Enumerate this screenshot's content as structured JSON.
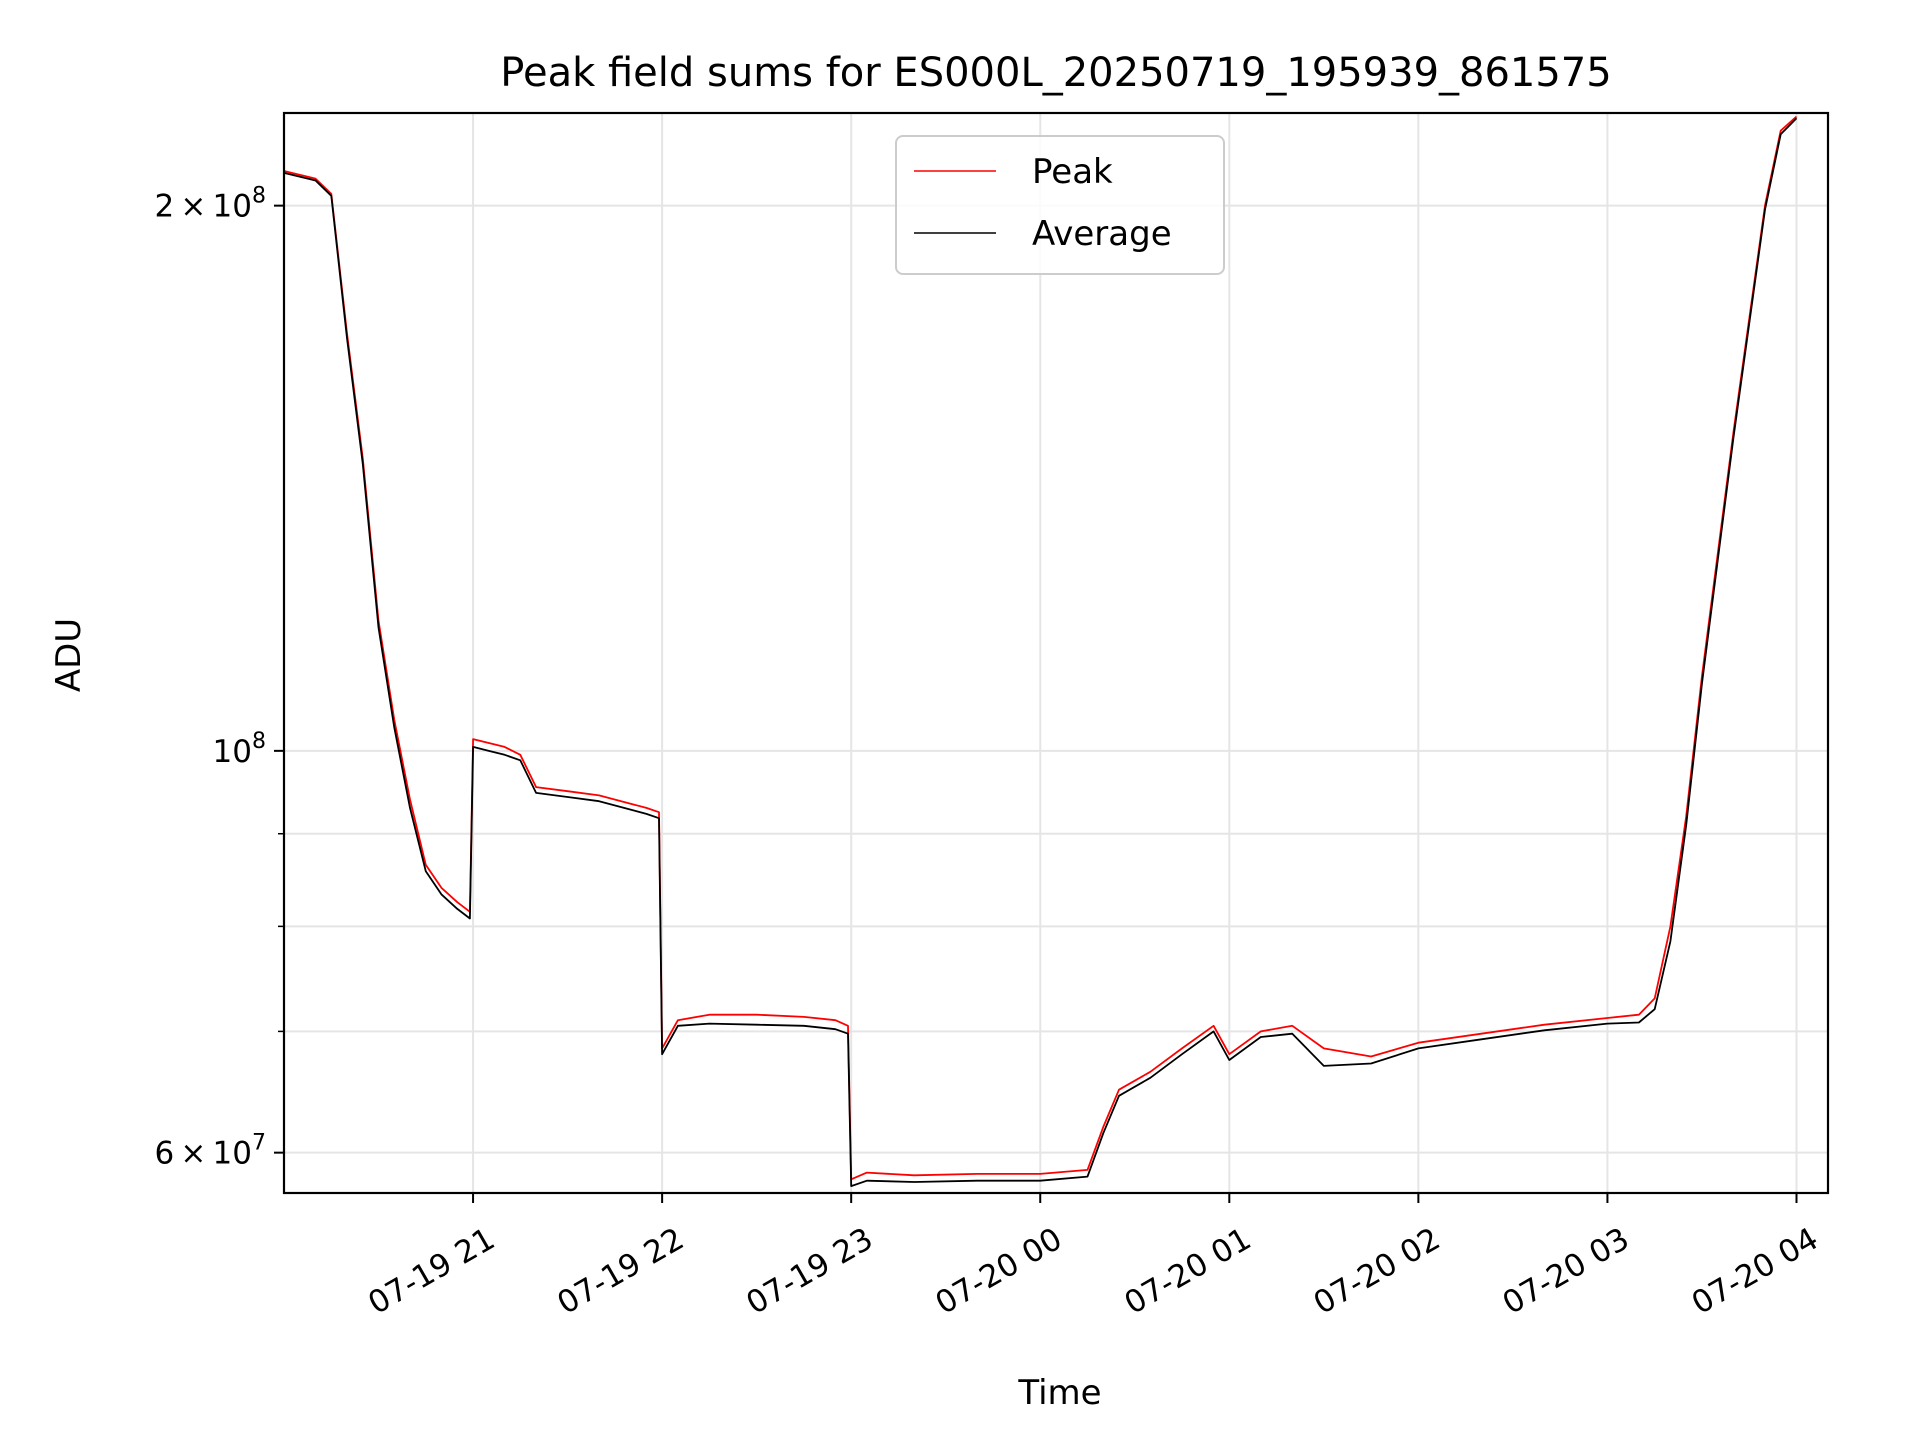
{
  "chart_data": {
    "type": "line",
    "title": "Peak field sums for ES000L_20250719_195939_861575",
    "xlabel": "Time",
    "ylabel": "ADU",
    "y_scale": "log",
    "grid": true,
    "legend_placement": "top-center",
    "xlim": [
      "2025-07-19 20:00",
      "2025-07-20 04:10"
    ],
    "ylim": [
      57000000,
      225000000
    ],
    "x_ticks": [
      {
        "t": "2025-07-19 21:00",
        "label": "07-19 21"
      },
      {
        "t": "2025-07-19 22:00",
        "label": "07-19 22"
      },
      {
        "t": "2025-07-19 23:00",
        "label": "07-19 23"
      },
      {
        "t": "2025-07-20 00:00",
        "label": "07-20 00"
      },
      {
        "t": "2025-07-20 01:00",
        "label": "07-20 01"
      },
      {
        "t": "2025-07-20 02:00",
        "label": "07-20 02"
      },
      {
        "t": "2025-07-20 03:00",
        "label": "07-20 03"
      },
      {
        "t": "2025-07-20 04:00",
        "label": "07-20 04"
      }
    ],
    "y_ticks": [
      {
        "value": 60000000,
        "base": "6",
        "exponent": "7"
      },
      {
        "value": 100000000,
        "base": "",
        "exponent": "8"
      },
      {
        "value": 200000000,
        "base": "2",
        "exponent": "8"
      }
    ],
    "y_minor_ticks": [
      70000000,
      80000000,
      90000000
    ],
    "series": [
      {
        "name": "Peak",
        "color": "#ff0000",
        "points": [
          [
            "2025-07-19 20:00",
            209000000
          ],
          [
            "2025-07-19 20:10",
            207000000
          ],
          [
            "2025-07-19 20:15",
            203000000
          ],
          [
            "2025-07-19 20:20",
            170000000
          ],
          [
            "2025-07-19 20:25",
            145000000
          ],
          [
            "2025-07-19 20:30",
            118000000
          ],
          [
            "2025-07-19 20:35",
            104000000
          ],
          [
            "2025-07-19 20:40",
            94000000
          ],
          [
            "2025-07-19 20:45",
            86500000
          ],
          [
            "2025-07-19 20:50",
            84000000
          ],
          [
            "2025-07-19 20:55",
            82500000
          ],
          [
            "2025-07-19 20:59",
            81500000
          ],
          [
            "2025-07-19 21:00",
            101500000
          ],
          [
            "2025-07-19 21:05",
            101000000
          ],
          [
            "2025-07-19 21:10",
            100500000
          ],
          [
            "2025-07-19 21:15",
            99500000
          ],
          [
            "2025-07-19 21:20",
            95500000
          ],
          [
            "2025-07-19 21:30",
            95000000
          ],
          [
            "2025-07-19 21:40",
            94500000
          ],
          [
            "2025-07-19 21:50",
            93500000
          ],
          [
            "2025-07-19 21:55",
            93000000
          ],
          [
            "2025-07-19 21:59",
            92500000
          ],
          [
            "2025-07-19 22:00",
            68500000
          ],
          [
            "2025-07-19 22:05",
            71000000
          ],
          [
            "2025-07-19 22:15",
            71500000
          ],
          [
            "2025-07-19 22:30",
            71500000
          ],
          [
            "2025-07-19 22:45",
            71300000
          ],
          [
            "2025-07-19 22:55",
            71000000
          ],
          [
            "2025-07-19 22:59",
            70500000
          ],
          [
            "2025-07-19 23:00",
            58000000
          ],
          [
            "2025-07-19 23:05",
            58500000
          ],
          [
            "2025-07-19 23:20",
            58300000
          ],
          [
            "2025-07-19 23:40",
            58400000
          ],
          [
            "2025-07-20 00:00",
            58400000
          ],
          [
            "2025-07-20 00:15",
            58700000
          ],
          [
            "2025-07-20 00:20",
            62000000
          ],
          [
            "2025-07-20 00:25",
            65000000
          ],
          [
            "2025-07-20 00:35",
            66500000
          ],
          [
            "2025-07-20 00:45",
            68500000
          ],
          [
            "2025-07-20 00:55",
            70500000
          ],
          [
            "2025-07-20 01:00",
            68000000
          ],
          [
            "2025-07-20 01:10",
            70000000
          ],
          [
            "2025-07-20 01:20",
            70500000
          ],
          [
            "2025-07-20 01:30",
            68500000
          ],
          [
            "2025-07-20 01:45",
            67800000
          ],
          [
            "2025-07-20 02:00",
            69000000
          ],
          [
            "2025-07-20 02:20",
            69800000
          ],
          [
            "2025-07-20 02:40",
            70600000
          ],
          [
            "2025-07-20 03:00",
            71200000
          ],
          [
            "2025-07-20 03:10",
            71500000
          ],
          [
            "2025-07-20 03:15",
            73000000
          ],
          [
            "2025-07-20 03:20",
            80000000
          ],
          [
            "2025-07-20 03:25",
            92000000
          ],
          [
            "2025-07-20 03:30",
            110000000
          ],
          [
            "2025-07-20 03:40",
            150000000
          ],
          [
            "2025-07-20 03:50",
            200000000
          ],
          [
            "2025-07-20 03:55",
            220000000
          ],
          [
            "2025-07-20 04:00",
            224000000
          ]
        ]
      },
      {
        "name": "Average",
        "color": "#000000",
        "points": [
          [
            "2025-07-19 20:00",
            208500000
          ],
          [
            "2025-07-19 20:10",
            206500000
          ],
          [
            "2025-07-19 20:15",
            202500000
          ],
          [
            "2025-07-19 20:20",
            169000000
          ],
          [
            "2025-07-19 20:25",
            144000000
          ],
          [
            "2025-07-19 20:30",
            117000000
          ],
          [
            "2025-07-19 20:35",
            103000000
          ],
          [
            "2025-07-19 20:40",
            93000000
          ],
          [
            "2025-07-19 20:45",
            85800000
          ],
          [
            "2025-07-19 20:50",
            83300000
          ],
          [
            "2025-07-19 20:55",
            81800000
          ],
          [
            "2025-07-19 20:59",
            80800000
          ],
          [
            "2025-07-19 21:00",
            100500000
          ],
          [
            "2025-07-19 21:05",
            100000000
          ],
          [
            "2025-07-19 21:10",
            99500000
          ],
          [
            "2025-07-19 21:15",
            98800000
          ],
          [
            "2025-07-19 21:20",
            94800000
          ],
          [
            "2025-07-19 21:30",
            94300000
          ],
          [
            "2025-07-19 21:40",
            93800000
          ],
          [
            "2025-07-19 21:50",
            92800000
          ],
          [
            "2025-07-19 21:55",
            92300000
          ],
          [
            "2025-07-19 21:59",
            91800000
          ],
          [
            "2025-07-19 22:00",
            68000000
          ],
          [
            "2025-07-19 22:05",
            70500000
          ],
          [
            "2025-07-19 22:15",
            70700000
          ],
          [
            "2025-07-19 22:30",
            70600000
          ],
          [
            "2025-07-19 22:45",
            70500000
          ],
          [
            "2025-07-19 22:55",
            70200000
          ],
          [
            "2025-07-19 22:59",
            69800000
          ],
          [
            "2025-07-19 23:00",
            57500000
          ],
          [
            "2025-07-19 23:05",
            57900000
          ],
          [
            "2025-07-19 23:20",
            57800000
          ],
          [
            "2025-07-19 23:40",
            57900000
          ],
          [
            "2025-07-20 00:00",
            57900000
          ],
          [
            "2025-07-20 00:15",
            58200000
          ],
          [
            "2025-07-20 00:20",
            61500000
          ],
          [
            "2025-07-20 00:25",
            64500000
          ],
          [
            "2025-07-20 00:35",
            66000000
          ],
          [
            "2025-07-20 00:45",
            68000000
          ],
          [
            "2025-07-20 00:55",
            70000000
          ],
          [
            "2025-07-20 01:00",
            67500000
          ],
          [
            "2025-07-20 01:10",
            69500000
          ],
          [
            "2025-07-20 01:20",
            69800000
          ],
          [
            "2025-07-20 01:30",
            67000000
          ],
          [
            "2025-07-20 01:45",
            67200000
          ],
          [
            "2025-07-20 02:00",
            68500000
          ],
          [
            "2025-07-20 02:20",
            69300000
          ],
          [
            "2025-07-20 02:40",
            70100000
          ],
          [
            "2025-07-20 03:00",
            70700000
          ],
          [
            "2025-07-20 03:10",
            70800000
          ],
          [
            "2025-07-20 03:15",
            72000000
          ],
          [
            "2025-07-20 03:20",
            78500000
          ],
          [
            "2025-07-20 03:25",
            91000000
          ],
          [
            "2025-07-20 03:30",
            109000000
          ],
          [
            "2025-07-20 03:40",
            149000000
          ],
          [
            "2025-07-20 03:50",
            199000000
          ],
          [
            "2025-07-20 03:55",
            219000000
          ],
          [
            "2025-07-20 04:00",
            223500000
          ]
        ]
      }
    ]
  }
}
